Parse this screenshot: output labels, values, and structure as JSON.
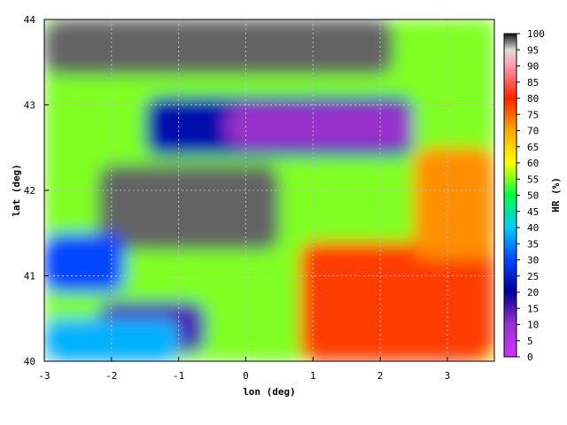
{
  "chart_data": {
    "type": "heatmap",
    "xlabel": "lon (deg)",
    "ylabel": "lat (deg)",
    "xlim": [
      -3,
      3.7
    ],
    "ylim": [
      40,
      44
    ],
    "x_ticks": [
      -3,
      -2,
      -1,
      0,
      1,
      2,
      3
    ],
    "y_ticks": [
      40,
      41,
      42,
      43,
      44
    ],
    "grid": true,
    "colorbar": {
      "label": "HR (%)",
      "range": [
        0,
        100
      ],
      "ticks": [
        0,
        5,
        10,
        15,
        20,
        25,
        30,
        35,
        40,
        45,
        50,
        55,
        60,
        65,
        70,
        75,
        80,
        85,
        90,
        95,
        100
      ],
      "stops": [
        {
          "value": 0,
          "color": "#cc33ff"
        },
        {
          "value": 10,
          "color": "#9933cc"
        },
        {
          "value": 20,
          "color": "#000099"
        },
        {
          "value": 30,
          "color": "#0044ff"
        },
        {
          "value": 40,
          "color": "#00ccff"
        },
        {
          "value": 50,
          "color": "#00ff44"
        },
        {
          "value": 60,
          "color": "#ffff00"
        },
        {
          "value": 70,
          "color": "#ffaa00"
        },
        {
          "value": 80,
          "color": "#ff2200"
        },
        {
          "value": 90,
          "color": "#ff99aa"
        },
        {
          "value": 95,
          "color": "#dddddd"
        },
        {
          "value": 100,
          "color": "#111111"
        }
      ]
    },
    "regions": [
      {
        "lon": [
          -3,
          3.7
        ],
        "lat": [
          40,
          44
        ],
        "value": 55
      },
      {
        "lon": [
          -3,
          2.2
        ],
        "lat": [
          43.35,
          44
        ],
        "value": 98
      },
      {
        "lon": [
          -2.2,
          0.5
        ],
        "lat": [
          41.3,
          42.3
        ],
        "value": 98
      },
      {
        "lon": [
          -1.5,
          2.5
        ],
        "lat": [
          42.4,
          43.1
        ],
        "value": 22
      },
      {
        "lon": [
          -0.3,
          2.5
        ],
        "lat": [
          42.5,
          43.0
        ],
        "value": 10
      },
      {
        "lon": [
          0.8,
          3.7
        ],
        "lat": [
          40,
          41.4
        ],
        "value": 78
      },
      {
        "lon": [
          2.5,
          3.7
        ],
        "lat": [
          41.2,
          42.5
        ],
        "value": 72
      },
      {
        "lon": [
          -2.2,
          -0.6
        ],
        "lat": [
          40.1,
          40.7
        ],
        "value": 15
      },
      {
        "lon": [
          -3,
          -1.8
        ],
        "lat": [
          40.8,
          41.5
        ],
        "value": 30
      },
      {
        "lon": [
          -3,
          -1.0
        ],
        "lat": [
          40.0,
          40.5
        ],
        "value": 38
      }
    ]
  }
}
